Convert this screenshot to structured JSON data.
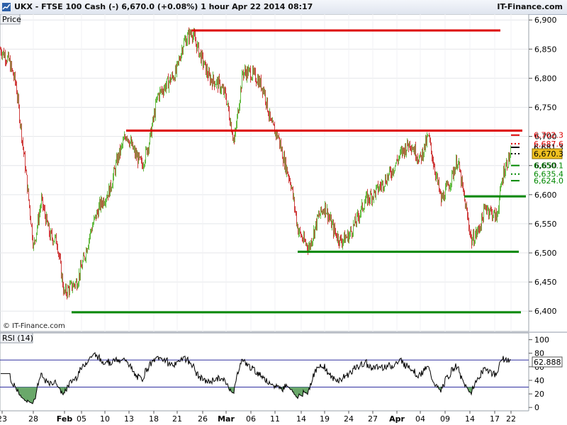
{
  "header": {
    "title": "UKX - FTSE 100 Cash (-)    6,670.0 (+0.08%)     1 hour   Apr 22 2014 08:17",
    "brand": "IT-Finance.com"
  },
  "colors": {
    "up_candle": "#66bb44",
    "down_candle": "#d04040",
    "resistance": "#dd0000",
    "support": "#008800",
    "rsi_line": "#000000",
    "rsi_band": "#3030a0",
    "price_tag": "#f0c020"
  },
  "chart_data": [
    {
      "type": "candlestick",
      "panel_label": "Price",
      "watermark": "© IT-Finance.com",
      "ylim": [
        6365,
        6910
      ],
      "y_ticks": [
        "6,900",
        "6,850",
        "6,800",
        "6,750",
        "6,700",
        "6,650",
        "6,600",
        "6,550",
        "6,500",
        "6,450",
        "6,400"
      ],
      "y_tick_values": [
        6900,
        6850,
        6800,
        6750,
        6700,
        6650,
        6600,
        6550,
        6500,
        6450,
        6400
      ],
      "x_ticks": [
        "23",
        "28",
        "Feb",
        "05",
        "10",
        "13",
        "18",
        "21",
        "26",
        "Mar",
        "06",
        "11",
        "14",
        "19",
        "24",
        "27",
        "Apr",
        "04",
        "09",
        "14",
        "17",
        "22"
      ],
      "x_tick_bold": [
        false,
        false,
        true,
        false,
        false,
        false,
        false,
        false,
        false,
        true,
        false,
        false,
        false,
        false,
        false,
        false,
        true,
        false,
        false,
        false,
        false,
        false
      ],
      "x_tick_index": [
        3,
        47,
        91,
        115,
        148,
        182,
        217,
        250,
        286,
        319,
        354,
        388,
        425,
        458,
        492,
        526,
        560,
        593,
        628,
        663,
        698,
        721
      ],
      "x_tick_labels_index": [
        13,
        47,
        91,
        115,
        148,
        182,
        217,
        250,
        286,
        319,
        354,
        388,
        425,
        458,
        492,
        526,
        560,
        593,
        628,
        663,
        698,
        721
      ],
      "price_path": [
        [
          0,
          6850
        ],
        [
          12,
          6830
        ],
        [
          22,
          6790
        ],
        [
          35,
          6650
        ],
        [
          47,
          6510
        ],
        [
          58,
          6590
        ],
        [
          70,
          6530
        ],
        [
          80,
          6520
        ],
        [
          90,
          6430
        ],
        [
          98,
          6440
        ],
        [
          108,
          6450
        ],
        [
          118,
          6490
        ],
        [
          128,
          6540
        ],
        [
          140,
          6580
        ],
        [
          155,
          6610
        ],
        [
          165,
          6660
        ],
        [
          178,
          6705
        ],
        [
          190,
          6670
        ],
        [
          200,
          6650
        ],
        [
          210,
          6690
        ],
        [
          222,
          6770
        ],
        [
          235,
          6790
        ],
        [
          248,
          6810
        ],
        [
          258,
          6860
        ],
        [
          270,
          6880
        ],
        [
          282,
          6840
        ],
        [
          295,
          6800
        ],
        [
          308,
          6790
        ],
        [
          318,
          6770
        ],
        [
          330,
          6690
        ],
        [
          342,
          6810
        ],
        [
          352,
          6810
        ],
        [
          362,
          6800
        ],
        [
          372,
          6780
        ],
        [
          382,
          6720
        ],
        [
          392,
          6700
        ],
        [
          400,
          6660
        ],
        [
          410,
          6620
        ],
        [
          420,
          6540
        ],
        [
          428,
          6520
        ],
        [
          436,
          6510
        ],
        [
          448,
          6560
        ],
        [
          458,
          6580
        ],
        [
          470,
          6540
        ],
        [
          480,
          6520
        ],
        [
          492,
          6530
        ],
        [
          504,
          6560
        ],
        [
          515,
          6590
        ],
        [
          526,
          6600
        ],
        [
          540,
          6620
        ],
        [
          552,
          6640
        ],
        [
          565,
          6670
        ],
        [
          578,
          6690
        ],
        [
          592,
          6660
        ],
        [
          604,
          6700
        ],
        [
          612,
          6650
        ],
        [
          622,
          6590
        ],
        [
          634,
          6620
        ],
        [
          645,
          6660
        ],
        [
          655,
          6590
        ],
        [
          665,
          6520
        ],
        [
          675,
          6540
        ],
        [
          685,
          6580
        ],
        [
          700,
          6560
        ],
        [
          710,
          6640
        ],
        [
          720,
          6670
        ]
      ],
      "resistance_lines": [
        {
          "i1": 270,
          "i2": 706,
          "value": 6882
        },
        {
          "i1": 178,
          "i2": 737,
          "value": 6710
        }
      ],
      "support_lines": [
        {
          "i1": 101,
          "i2": 735,
          "value": 6398
        },
        {
          "i1": 420,
          "i2": 732,
          "value": 6502
        },
        {
          "i1": 655,
          "i2": 742,
          "value": 6597
        }
      ],
      "levels": [
        {
          "label": "6,702.3",
          "value": 6702.3,
          "kind": "resistance"
        },
        {
          "label": "6,687.6",
          "value": 6687.6,
          "kind": "resistance"
        },
        {
          "label": "6,681.3",
          "value": 6681.3,
          "kind": "last"
        },
        {
          "label": "6,670.3",
          "value": 6670.3,
          "kind": "current"
        },
        {
          "label": "6,650.1",
          "value": 6650.1,
          "kind": "support"
        },
        {
          "label": "6,635.4",
          "value": 6635.4,
          "kind": "support"
        },
        {
          "label": "6,624.0",
          "value": 6624.0,
          "kind": "support"
        }
      ]
    },
    {
      "type": "line",
      "panel_label": "RSI (14)",
      "ylim": [
        -5,
        110
      ],
      "y_ticks": [
        "100",
        "80",
        "60",
        "40",
        "20",
        "0"
      ],
      "y_tick_values": [
        100,
        80,
        60,
        40,
        20,
        0
      ],
      "bands": [
        70,
        30
      ],
      "last_value_label": "62.888",
      "last_value": 62.888
    }
  ]
}
